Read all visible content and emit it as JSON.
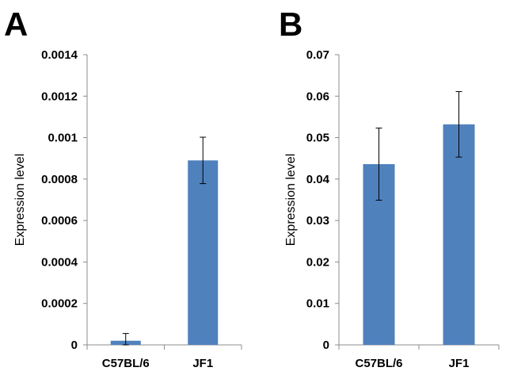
{
  "chart_data": [
    {
      "type": "bar",
      "panel_label": "A",
      "categories": [
        "C57BL/6",
        "JF1"
      ],
      "values": [
        2e-05,
        0.00089
      ],
      "error": [
        3.5e-05,
        0.000112
      ],
      "ylabel": "Expression level",
      "ylim": [
        0,
        0.0014
      ],
      "yticks": [
        "0",
        "0.0002",
        "0.0004",
        "0.0006",
        "0.0008",
        "0.001",
        "0.0012",
        "0.0014"
      ],
      "bar_color": "#4f81bd",
      "grid": false
    },
    {
      "type": "bar",
      "panel_label": "B",
      "categories": [
        "C57BL/6",
        "JF1"
      ],
      "values": [
        0.0436,
        0.0532
      ],
      "error": [
        0.0087,
        0.0079
      ],
      "ylabel": "Expression level",
      "ylim": [
        0,
        0.07
      ],
      "yticks": [
        "0",
        "0.01",
        "0.02",
        "0.03",
        "0.04",
        "0.05",
        "0.06",
        "0.07"
      ],
      "bar_color": "#4f81bd",
      "grid": false
    }
  ]
}
